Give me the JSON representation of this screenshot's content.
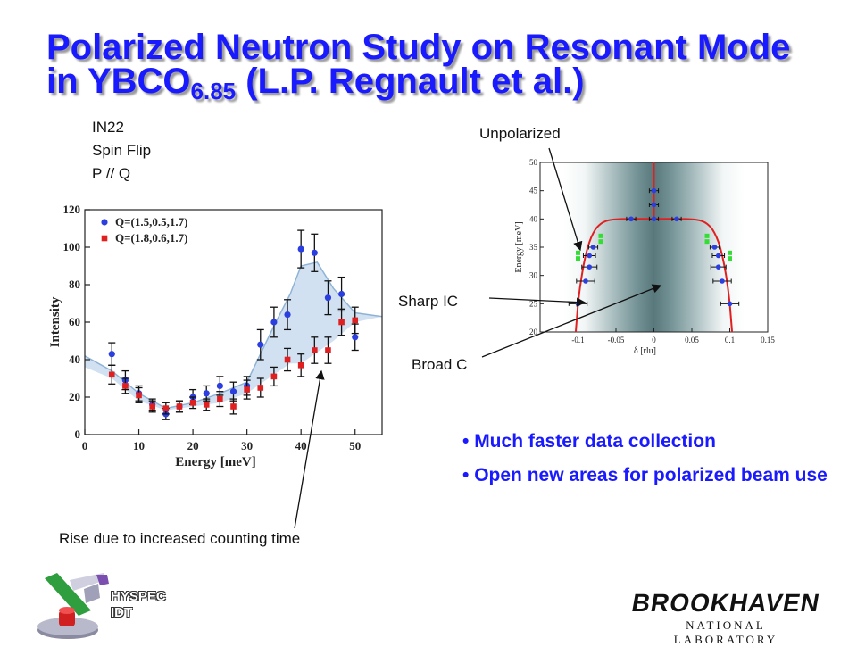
{
  "slide": {
    "title_main": "Polarized Neutron Study on Resonant Mode in YBCO",
    "title_sub": "6.85",
    "title_tail": " (L.P. Regnault et al.)",
    "info_lines": [
      "IN22",
      "Spin Flip",
      "P // Q"
    ],
    "bullets": [
      "Much faster data collection",
      "Open new areas for polarized beam use"
    ],
    "annotations": {
      "rise": "Rise due to increased counting time",
      "unpolarized": "Unpolarized",
      "sharp_ic": "Sharp IC",
      "broad_c": "Broad C"
    },
    "logos": {
      "hyspec_line1": "HYSPEC",
      "hyspec_line2": "IDT",
      "bnl_name": "BROOKHAVEN",
      "bnl_sub": "NATIONAL LABORATORY"
    },
    "colors": {
      "title": "#1a1aff",
      "blue_series": "#2b3fe0",
      "red_series": "#e02020",
      "fit_curve": "#e02020"
    }
  },
  "chart_data": [
    {
      "type": "scatter",
      "xlabel": "Energy [meV]",
      "ylabel": "Intensity",
      "xlim": [
        0,
        55
      ],
      "ylim": [
        0,
        120
      ],
      "xticks": [
        0,
        10,
        20,
        30,
        40,
        50
      ],
      "yticks": [
        0,
        20,
        40,
        60,
        80,
        100,
        120
      ],
      "legend_position": "top-left",
      "series": [
        {
          "name": "Q=(1.5,0.5,1.7)",
          "color": "#2b3fe0",
          "x": [
            5,
            7.5,
            10,
            12.5,
            15,
            17.5,
            20,
            22.5,
            25,
            27.5,
            30,
            32.5,
            35,
            37.5,
            40,
            42.5,
            45,
            47.5,
            50
          ],
          "y": [
            43,
            29,
            22,
            16,
            11,
            15,
            20,
            22,
            26,
            23,
            26,
            48,
            60,
            64,
            99,
            97,
            73,
            75,
            52
          ],
          "err": [
            6,
            5,
            4,
            3,
            3,
            3,
            4,
            4,
            5,
            5,
            5,
            8,
            8,
            8,
            10,
            10,
            9,
            9,
            7
          ]
        },
        {
          "name": "Q=(1.8,0.6,1.7)",
          "color": "#e02020",
          "x": [
            5,
            7.5,
            10,
            12.5,
            15,
            17.5,
            20,
            22.5,
            25,
            27.5,
            30,
            32.5,
            35,
            37.5,
            40,
            42.5,
            45,
            47.5,
            50
          ],
          "y": [
            32,
            26,
            21,
            15,
            14,
            15,
            17,
            16,
            19,
            15,
            24,
            25,
            31,
            40,
            37,
            45,
            45,
            60,
            61
          ],
          "err": [
            5,
            4,
            4,
            3,
            3,
            3,
            3,
            3,
            4,
            4,
            5,
            5,
            5,
            6,
            6,
            7,
            7,
            7,
            7
          ]
        }
      ],
      "shaded_band": {
        "x": [
          0,
          5,
          10,
          15,
          20,
          25,
          30,
          35,
          38,
          40,
          43,
          46,
          50,
          55
        ],
        "y_low": [
          36,
          30,
          18,
          13,
          15,
          17,
          22,
          32,
          38,
          38,
          44,
          50,
          60,
          63
        ],
        "y_high": [
          42,
          34,
          22,
          14,
          17,
          22,
          28,
          58,
          75,
          90,
          92,
          78,
          65,
          63
        ]
      }
    },
    {
      "type": "scatter",
      "xlabel": "δ [rlu]",
      "ylabel": "Energy [meV]",
      "xlim": [
        -0.15,
        0.15
      ],
      "ylim": [
        20,
        50
      ],
      "xticks": [
        -0.1,
        -0.05,
        0,
        0.05,
        0.1,
        0.15
      ],
      "yticks": [
        20,
        25,
        30,
        35,
        40,
        45,
        50
      ],
      "points": [
        {
          "x": -0.1,
          "y": 25,
          "xerr": 0.012
        },
        {
          "x": -0.09,
          "y": 29,
          "xerr": 0.012
        },
        {
          "x": -0.085,
          "y": 31.5,
          "xerr": 0.01
        },
        {
          "x": -0.085,
          "y": 33.5,
          "xerr": 0.008
        },
        {
          "x": -0.08,
          "y": 35,
          "xerr": 0.006
        },
        {
          "x": -0.03,
          "y": 40,
          "xerr": 0.006
        },
        {
          "x": 0,
          "y": 40,
          "xerr": 0.006
        },
        {
          "x": 0.03,
          "y": 40,
          "xerr": 0.006
        },
        {
          "x": 0,
          "y": 42.5,
          "xerr": 0.006
        },
        {
          "x": 0,
          "y": 45,
          "xerr": 0.006
        },
        {
          "x": 0.08,
          "y": 35,
          "xerr": 0.006
        },
        {
          "x": 0.085,
          "y": 33.5,
          "xerr": 0.008
        },
        {
          "x": 0.085,
          "y": 31.5,
          "xerr": 0.01
        },
        {
          "x": 0.09,
          "y": 29,
          "xerr": 0.012
        },
        {
          "x": 0.1,
          "y": 25,
          "xerr": 0.012
        }
      ],
      "green_markers": [
        {
          "x": -0.1,
          "y": 34
        },
        {
          "x": -0.1,
          "y": 33
        },
        {
          "x": -0.07,
          "y": 37
        },
        {
          "x": -0.07,
          "y": 36
        },
        {
          "x": 0.07,
          "y": 37
        },
        {
          "x": 0.07,
          "y": 36
        },
        {
          "x": 0.1,
          "y": 34
        },
        {
          "x": 0.1,
          "y": 33
        }
      ]
    }
  ]
}
